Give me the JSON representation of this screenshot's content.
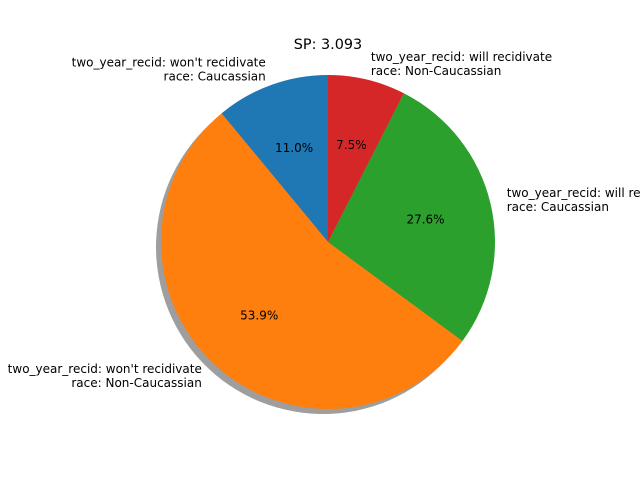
{
  "chart_data": {
    "type": "pie",
    "title": "SP: 3.093",
    "start_angle_deg": 90,
    "direction": "counterclockwise",
    "shadow": true,
    "slices": [
      {
        "label_lines": [
          "two_year_recid: won't recidivate",
          "race: Caucassian"
        ],
        "value": 11.0,
        "pct_label": "11.0%",
        "color": "#1f77b4"
      },
      {
        "label_lines": [
          "two_year_recid: won't recidivate",
          "race: Non-Caucassian"
        ],
        "value": 53.9,
        "pct_label": "53.9%",
        "color": "#ff7f0e"
      },
      {
        "label_lines": [
          "two_year_recid: will recidivate",
          "race: Caucassian"
        ],
        "value": 27.6,
        "pct_label": "27.6%",
        "color": "#2ca02c"
      },
      {
        "label_lines": [
          "two_year_recid: will recidivate",
          "race: Non-Caucassian"
        ],
        "value": 7.5,
        "pct_label": "7.5%",
        "color": "#d62728"
      }
    ]
  }
}
